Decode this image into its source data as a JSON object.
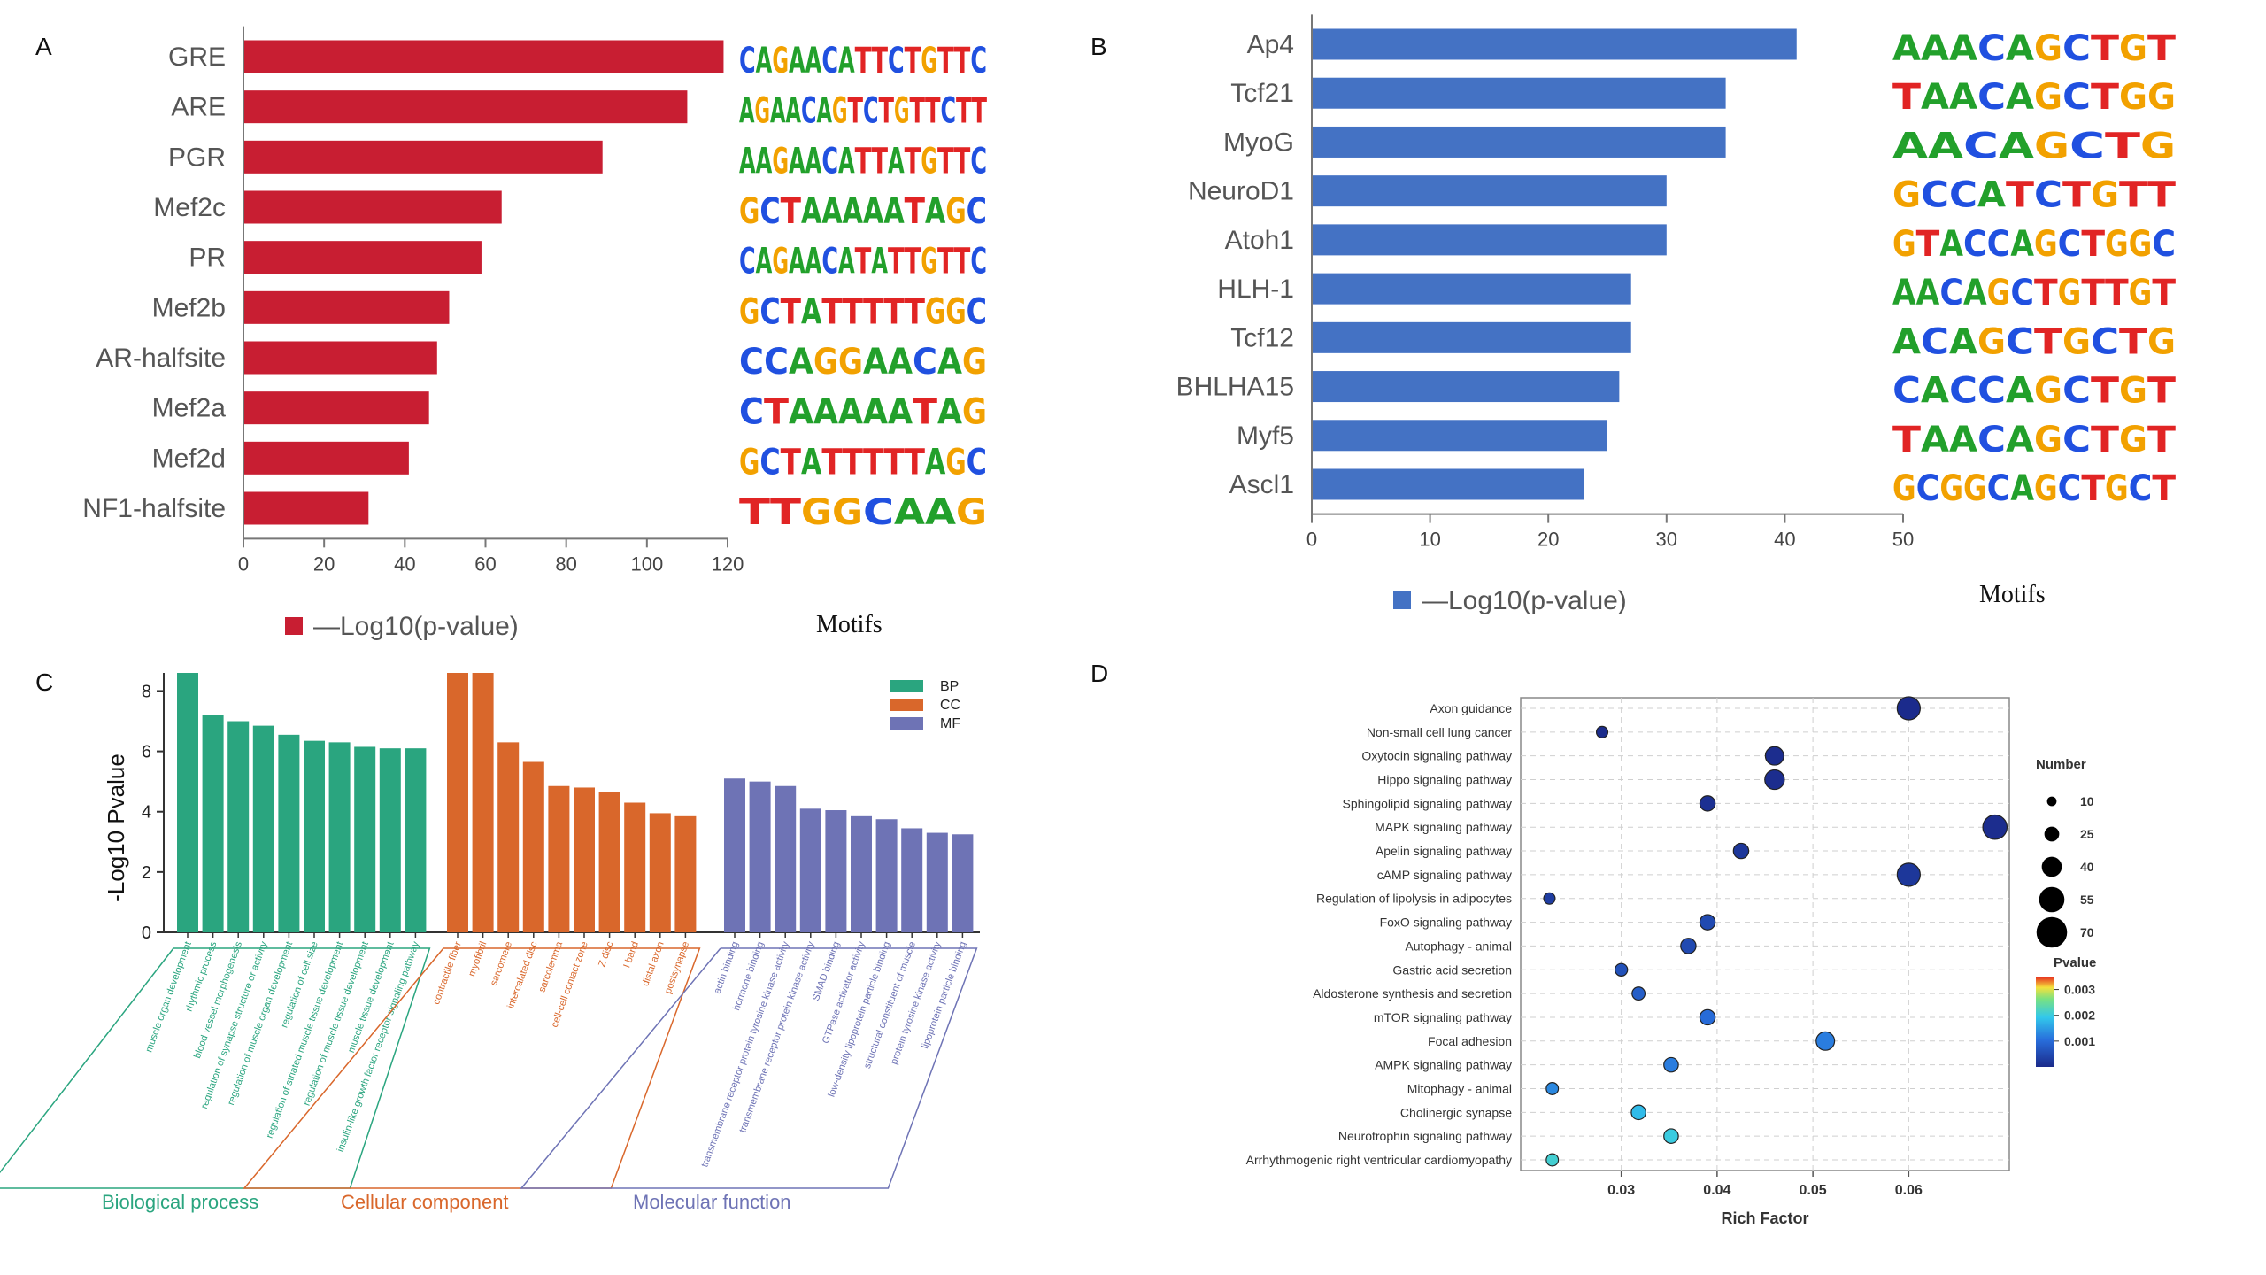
{
  "panel_letters": {
    "a": "A",
    "b": "B",
    "c": "C",
    "d": "D"
  },
  "colors": {
    "panel_a": "#c81e32",
    "panel_b": "#4472c4",
    "bp": "#2aa57f",
    "cc": "#d9672b",
    "mf": "#6e73b5",
    "bubble_high": "#1b2a8a",
    "bubble_low": "#7be07b"
  },
  "chart_data": [
    {
      "id": "A",
      "type": "bar",
      "orientation": "horizontal",
      "categories": [
        "GRE",
        "ARE",
        "PGR",
        "Mef2c",
        "PR",
        "Mef2b",
        "AR-halfsite",
        "Mef2a",
        "Mef2d",
        "NF1-halfsite"
      ],
      "values": [
        119,
        110,
        89,
        64,
        59,
        51,
        48,
        46,
        41,
        31
      ],
      "xlim": [
        0,
        120
      ],
      "xticks": [
        0,
        20,
        40,
        60,
        80,
        100,
        120
      ],
      "legend": "—Log10(p-value)",
      "extra_label": "Motifs",
      "motifs": [
        "CAGAACATTCTGTTC",
        "AGAACAGTCTGTTCTT",
        "AAGAACATTATGTTC",
        "GCTAAAAATAGC",
        "CAGAACATATTGTTC",
        "GCTATTTTTGGC",
        "CCAGGAACAG",
        "CTAAAAATAG",
        "GCTATTTTTAGC",
        "TTGGCAAG"
      ]
    },
    {
      "id": "B",
      "type": "bar",
      "orientation": "horizontal",
      "categories": [
        "Ap4",
        "Tcf21",
        "MyoG",
        "NeuroD1",
        "Atoh1",
        "HLH-1",
        "Tcf12",
        "BHLHA15",
        "Myf5",
        "Ascl1"
      ],
      "values": [
        41,
        35,
        35,
        30,
        30,
        27,
        27,
        26,
        25,
        23
      ],
      "xlim": [
        0,
        50
      ],
      "xticks": [
        0,
        10,
        20,
        30,
        40,
        50
      ],
      "legend": "—Log10(p-value)",
      "extra_label": "Motifs",
      "motifs": [
        "AAACAGCTGT",
        "TAACAGCTGG",
        "AACAGCTG",
        "GCCATCTGTT",
        "GTACCAGCTGGC",
        "AACAGCTGTTGT",
        "ACAGCTGCTG",
        "CACCAGCTGT",
        "TAACAGCTGT",
        "GCGGCAGCTGCT"
      ]
    },
    {
      "id": "C",
      "type": "bar",
      "ylabel": "-Log10 Pvalue",
      "ylim": [
        0,
        8.6
      ],
      "yticks": [
        0,
        2,
        4,
        6,
        8
      ],
      "legend": [
        "BP",
        "CC",
        "MF"
      ],
      "groups": [
        {
          "name": "Biological process",
          "key": "BP",
          "categories": [
            "muscle organ development",
            "rhythmic process",
            "blood vessel morphogenesis",
            "regulation of synapse structure or activity",
            "regulation of muscle organ development",
            "regulation of cell size",
            "regulation of striated muscle tissue development",
            "regulation of muscle tissue development",
            "muscle tissue development",
            "insulin-like growth factor receptor signaling pathway"
          ],
          "values": [
            8.6,
            7.2,
            7.0,
            6.85,
            6.55,
            6.35,
            6.3,
            6.15,
            6.1,
            6.1
          ]
        },
        {
          "name": "Cellular component",
          "key": "CC",
          "categories": [
            "contractile fiber",
            "myofibril",
            "sarcomere",
            "intercalated disc",
            "sarcolemma",
            "cell-cell contact zone",
            "Z disc",
            "I band",
            "distal axon",
            "postsynapse"
          ],
          "values": [
            8.6,
            8.6,
            6.3,
            5.65,
            4.85,
            4.8,
            4.65,
            4.3,
            3.95,
            3.85
          ]
        },
        {
          "name": "Molecular function",
          "key": "MF",
          "categories": [
            "actin binding",
            "hormone binding",
            "transmembrane receptor protein tyrosine kinase activity",
            "transmembrane receptor protein kinase activity",
            "SMAD binding",
            "GTPase activator activity",
            "low-density lipoprotein particle binding",
            "structural constituent of muscle",
            "protein tyrosine kinase activity",
            "lipoprotein particle binding"
          ],
          "values": [
            5.1,
            5.0,
            4.85,
            4.1,
            4.05,
            3.85,
            3.75,
            3.45,
            3.3,
            3.25
          ]
        }
      ]
    },
    {
      "id": "D",
      "type": "scatter",
      "xlabel": "Rich Factor",
      "xlim": [
        0.0195,
        0.0705
      ],
      "xticks": [
        0.03,
        0.04,
        0.05,
        0.06
      ],
      "size_legend_title": "Number",
      "size_legend": [
        10,
        25,
        40,
        55,
        70
      ],
      "color_legend_title": "Pvalue",
      "color_ticks": [
        0.003,
        0.002,
        0.001
      ],
      "color_range": [
        0.0,
        0.0035
      ],
      "points": [
        {
          "label": "Axon guidance",
          "x": 0.06,
          "number": 42,
          "pvalue": 2e-05
        },
        {
          "label": "Non-small cell lung cancer",
          "x": 0.028,
          "number": 12,
          "pvalue": 3e-05
        },
        {
          "label": "Oxytocin signaling pathway",
          "x": 0.046,
          "number": 30,
          "pvalue": 5e-05
        },
        {
          "label": "Hippo signaling pathway",
          "x": 0.046,
          "number": 33,
          "pvalue": 5e-05
        },
        {
          "label": "Sphingolipid signaling pathway",
          "x": 0.039,
          "number": 22,
          "pvalue": 0.0001
        },
        {
          "label": "MAPK signaling pathway",
          "x": 0.069,
          "number": 45,
          "pvalue": 5e-05
        },
        {
          "label": "Apelin signaling pathway",
          "x": 0.0425,
          "number": 22,
          "pvalue": 0.0002
        },
        {
          "label": "cAMP signaling pathway",
          "x": 0.06,
          "number": 42,
          "pvalue": 0.0002
        },
        {
          "label": "Regulation of lipolysis in adipocytes",
          "x": 0.0225,
          "number": 12,
          "pvalue": 0.0003
        },
        {
          "label": "FoxO signaling pathway",
          "x": 0.039,
          "number": 22,
          "pvalue": 0.0005
        },
        {
          "label": "Autophagy - animal",
          "x": 0.037,
          "number": 22,
          "pvalue": 0.0005
        },
        {
          "label": "Gastric acid secretion",
          "x": 0.03,
          "number": 15,
          "pvalue": 0.0006
        },
        {
          "label": "Aldosterone synthesis and secretion",
          "x": 0.0318,
          "number": 16,
          "pvalue": 0.0008
        },
        {
          "label": "mTOR signaling pathway",
          "x": 0.039,
          "number": 22,
          "pvalue": 0.001
        },
        {
          "label": "Focal adhesion",
          "x": 0.0513,
          "number": 30,
          "pvalue": 0.0012
        },
        {
          "label": "AMPK signaling pathway",
          "x": 0.0352,
          "number": 20,
          "pvalue": 0.0012
        },
        {
          "label": "Mitophagy - animal",
          "x": 0.0228,
          "number": 14,
          "pvalue": 0.0013
        },
        {
          "label": "Cholinergic synapse",
          "x": 0.0318,
          "number": 20,
          "pvalue": 0.0018
        },
        {
          "label": "Neurotrophin signaling pathway",
          "x": 0.0352,
          "number": 20,
          "pvalue": 0.002
        },
        {
          "label": "Arrhythmogenic right ventricular cardiomyopathy",
          "x": 0.0228,
          "number": 14,
          "pvalue": 0.0021
        }
      ]
    }
  ]
}
